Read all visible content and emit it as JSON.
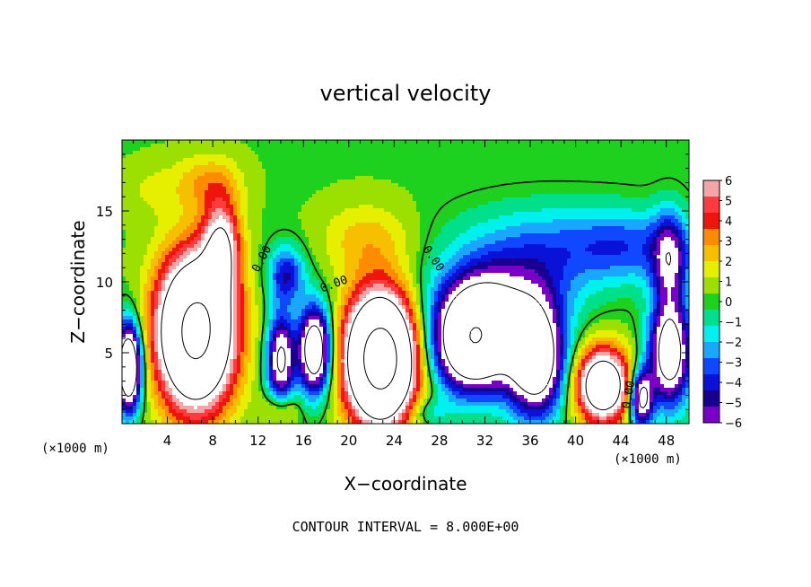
{
  "chart_data": {
    "type": "heatmap",
    "title": "vertical velocity",
    "xlabel": "X−coordinate",
    "ylabel": "Z−coordinate",
    "x_unit_left": "(×1000 m)",
    "x_unit_right": "(×1000 m)",
    "footer": "CONTOUR INTERVAL = 8.000E+00",
    "xlim": [
      0,
      50
    ],
    "ylim": [
      0,
      20
    ],
    "x_ticks": [
      4,
      8,
      12,
      16,
      20,
      24,
      28,
      32,
      36,
      40,
      44,
      48
    ],
    "y_ticks": [
      5,
      10,
      15
    ],
    "colorbar": {
      "range": [
        -6,
        6
      ],
      "labels": [
        "6",
        "5",
        "4",
        "3",
        "2",
        "1",
        "0",
        "−1",
        "−2",
        "−3",
        "−4",
        "−5",
        "−6"
      ],
      "colors": [
        "#f4a6a6",
        "#ff3b3b",
        "#f0150c",
        "#ff8c00",
        "#f6c000",
        "#e7ef00",
        "#9be000",
        "#1fd11f",
        "#00e08a",
        "#00f0ee",
        "#1aa7ff",
        "#1048ff",
        "#0a12d8",
        "#1a0090",
        "#7a00c8"
      ]
    },
    "contour_labels": [
      "0.00",
      "0.00",
      "0.00",
      "0.00"
    ],
    "background_level": 0.3,
    "features": [
      {
        "kind": "updraft",
        "x": 6.5,
        "z": 6.5,
        "rx": 3.3,
        "rz": 5.2,
        "w": 18
      },
      {
        "kind": "updraft",
        "x": 8.8,
        "z": 12.5,
        "rx": 1.6,
        "rz": 3.3,
        "w": 7
      },
      {
        "kind": "updraft",
        "x": 22.8,
        "z": 4.6,
        "rx": 3.0,
        "rz": 4.4,
        "w": 20
      },
      {
        "kind": "updraft",
        "x": 42.4,
        "z": 2.7,
        "rx": 2.4,
        "rz": 2.6,
        "w": 12
      },
      {
        "kind": "updraft",
        "x": 21.5,
        "z": 13.0,
        "rx": 4.0,
        "rz": 2.6,
        "w": 2.2
      },
      {
        "kind": "updraft",
        "x": 7.5,
        "z": 17.0,
        "rx": 3.0,
        "rz": 2.0,
        "w": 2.5
      },
      {
        "kind": "updraft",
        "x": 14.0,
        "z": 1.0,
        "rx": 1.5,
        "rz": 1.2,
        "w": 3
      },
      {
        "kind": "updraft",
        "x": 2.5,
        "z": 16.5,
        "rx": 2.5,
        "rz": 2.0,
        "w": 1.0
      },
      {
        "kind": "downdraft",
        "x": 0.6,
        "z": 4.0,
        "rx": 1.1,
        "rz": 3.0,
        "w": -14
      },
      {
        "kind": "downdraft",
        "x": 14.0,
        "z": 4.5,
        "rx": 1.2,
        "rz": 3.2,
        "w": -9
      },
      {
        "kind": "downdraft",
        "x": 17.0,
        "z": 5.2,
        "rx": 1.4,
        "rz": 3.0,
        "w": -12
      },
      {
        "kind": "downdraft",
        "x": 14.5,
        "z": 10.5,
        "rx": 1.6,
        "rz": 2.0,
        "w": -5
      },
      {
        "kind": "downdraft",
        "x": 31.0,
        "z": 5.8,
        "rx": 3.4,
        "rz": 3.4,
        "w": -15
      },
      {
        "kind": "downdraft",
        "x": 36.5,
        "z": 4.5,
        "rx": 2.5,
        "rz": 3.8,
        "w": -12
      },
      {
        "kind": "downdraft",
        "x": 33.5,
        "z": 9.0,
        "rx": 5.5,
        "rz": 3.0,
        "w": -5
      },
      {
        "kind": "downdraft",
        "x": 37.5,
        "z": 12.5,
        "rx": 8.0,
        "rz": 3.0,
        "w": -3
      },
      {
        "kind": "downdraft",
        "x": 45.8,
        "z": 1.8,
        "rx": 1.0,
        "rz": 2.0,
        "w": -10
      },
      {
        "kind": "downdraft",
        "x": 48.3,
        "z": 5.0,
        "rx": 1.8,
        "rz": 3.6,
        "w": -11
      },
      {
        "kind": "downdraft",
        "x": 48.3,
        "z": 11.5,
        "rx": 1.5,
        "rz": 3.2,
        "w": -6
      },
      {
        "kind": "downdraft",
        "x": 45.0,
        "z": 12.5,
        "rx": 5.0,
        "rz": 2.5,
        "w": -2.8
      },
      {
        "kind": "downdraft",
        "x": 27.0,
        "z": 0.8,
        "rx": 1.8,
        "rz": 1.0,
        "w": -2
      }
    ]
  }
}
